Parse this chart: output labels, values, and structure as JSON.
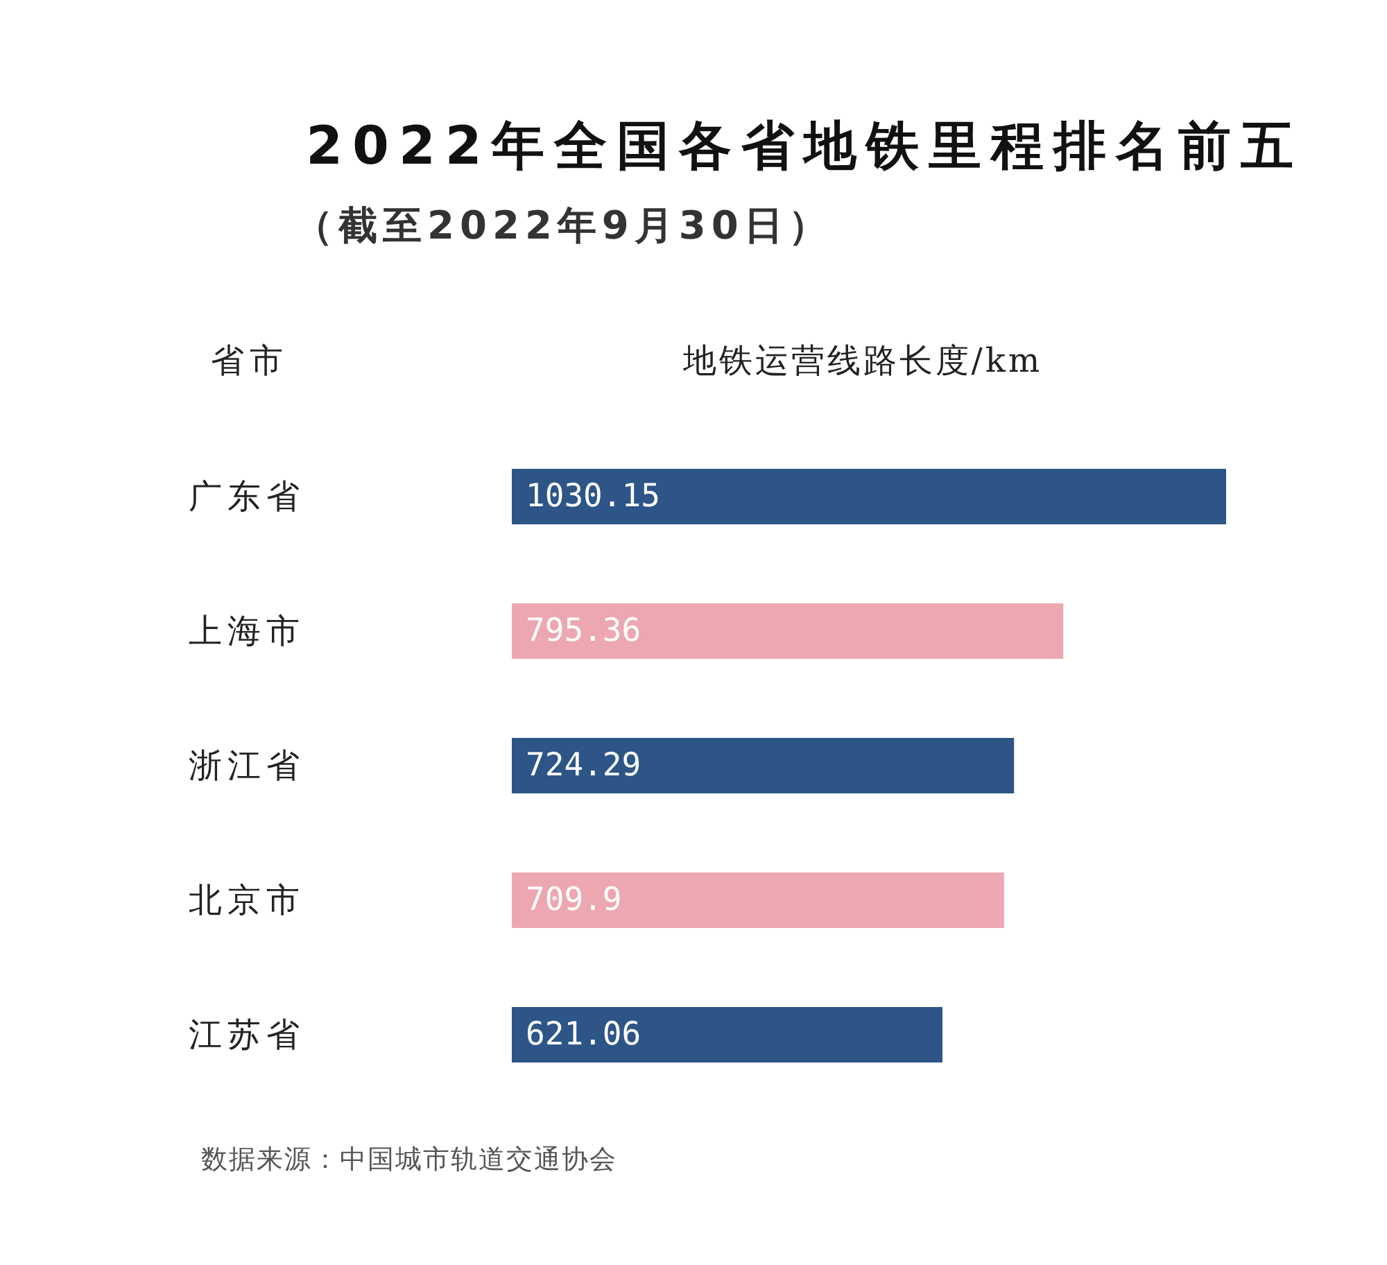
{
  "chart_data": {
    "type": "bar",
    "orientation": "horizontal",
    "title": "2022年全国各省地铁里程排名前五",
    "subtitle": "（截至2022年9月30日）",
    "ylabel": "省市",
    "xlabel": "地铁运营线路长度/km",
    "categories": [
      "广东省",
      "上海市",
      "浙江省",
      "北京市",
      "江苏省"
    ],
    "values": [
      1030.15,
      795.36,
      724.29,
      709.9,
      621.06
    ],
    "colors": [
      "#2d5587",
      "#eca7b1",
      "#2d5587",
      "#eca7b1",
      "#2d5587"
    ],
    "data_labels": true,
    "tick_labels": "y",
    "annotations": [
      "数据来源：中国城市轨道交通协会"
    ]
  }
}
